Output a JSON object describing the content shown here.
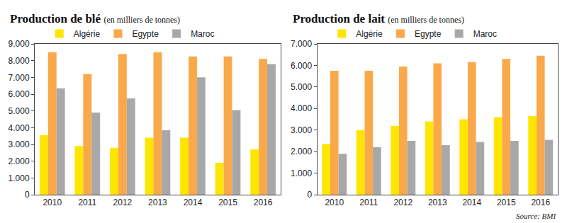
{
  "chart_data": [
    {
      "type": "bar",
      "title": "Production de blé",
      "subtitle": "(en milliers de tonnes)",
      "categories": [
        "2010",
        "2011",
        "2012",
        "2013",
        "2014",
        "2015",
        "2016"
      ],
      "series": [
        {
          "name": "Algérie",
          "color": "#ffe600",
          "values": [
            3550,
            2900,
            2800,
            3400,
            3400,
            1900,
            2700
          ]
        },
        {
          "name": "Egypte",
          "color": "#f9a94a",
          "values": [
            8500,
            7200,
            8400,
            8500,
            8250,
            8250,
            8100
          ]
        },
        {
          "name": "Maroc",
          "color": "#a8a8a8",
          "values": [
            6350,
            4900,
            5750,
            3850,
            7000,
            5050,
            7800
          ]
        }
      ],
      "ylim": [
        0,
        9000
      ],
      "yticks": [
        0,
        {
          "value": 1000,
          "label": "1.000"
        },
        {
          "value": 2000,
          "label": "2.000"
        },
        {
          "value": 3000,
          "label": "3.000"
        },
        {
          "value": 4000,
          "label": "4.000"
        },
        {
          "value": 5000,
          "label": "5.000"
        },
        {
          "value": 6000,
          "label": "6.000"
        },
        {
          "value": 7000,
          "label": "7.000"
        },
        {
          "value": 8000,
          "label": "8.000"
        },
        {
          "value": 9000,
          "label": "9.000"
        }
      ],
      "grid": false,
      "legend": "top"
    },
    {
      "type": "bar",
      "title": "Production de lait",
      "subtitle": "(en milliers de tonnes)",
      "categories": [
        "2010",
        "2011",
        "2012",
        "2013",
        "2014",
        "2015",
        "2016"
      ],
      "series": [
        {
          "name": "Algérie",
          "color": "#ffe600",
          "values": [
            2350,
            3000,
            3200,
            3400,
            3500,
            3600,
            3650
          ]
        },
        {
          "name": "Egypte",
          "color": "#f9a94a",
          "values": [
            5750,
            5750,
            5950,
            6100,
            6150,
            6300,
            6450
          ]
        },
        {
          "name": "Maroc",
          "color": "#a8a8a8",
          "values": [
            1900,
            2200,
            2500,
            2300,
            2450,
            2500,
            2550
          ]
        }
      ],
      "ylim": [
        0,
        7000
      ],
      "yticks": [
        0,
        {
          "value": 1000,
          "label": "1.000"
        },
        {
          "value": 2000,
          "label": "2.000"
        },
        {
          "value": 3000,
          "label": "3.000"
        },
        {
          "value": 4000,
          "label": "4.000"
        },
        {
          "value": 5000,
          "label": "5.000"
        },
        {
          "value": 6000,
          "label": "6.000"
        },
        {
          "value": 7000,
          "label": "7.000"
        }
      ],
      "grid": false,
      "legend": "top",
      "annotations": [
        "Source: BMI"
      ]
    }
  ]
}
